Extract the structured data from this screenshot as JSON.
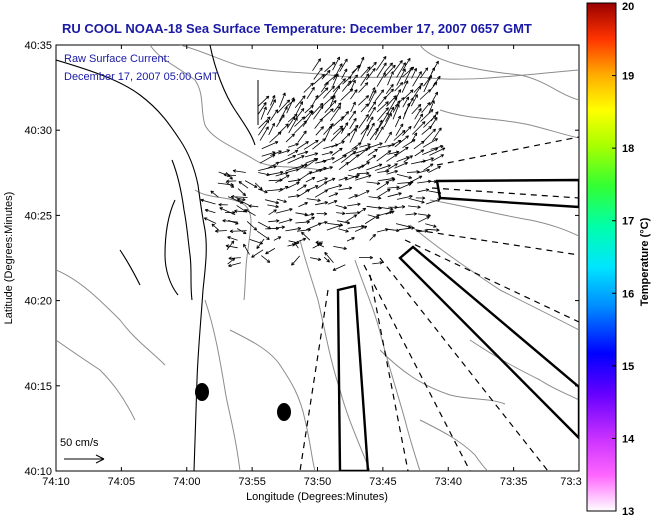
{
  "chart_data": {
    "type": "map",
    "title": "RU COOL  NOAA-18  Sea Surface Temperature:  December 17, 2007 0657 GMT",
    "annotation_line1": "Raw Surface Current:",
    "annotation_line2": "December 17, 2007 05:00 GMT",
    "xlabel": "Longitude (Degrees:Minutes)",
    "ylabel": "Latitude (Degrees:Minutes)",
    "x_ticks": [
      "74:10",
      "74:05",
      "74:00",
      "73:55",
      "73:50",
      "73:45",
      "73:40",
      "73:35",
      "73:3"
    ],
    "y_ticks": [
      "40:10",
      "40:15",
      "40:20",
      "40:25",
      "40:30",
      "40:35"
    ],
    "scale_label": "50 cm/s",
    "colorbar": {
      "label": "Temperature (°C)",
      "ticks": [
        "13",
        "14",
        "15",
        "16",
        "17",
        "18",
        "19",
        "20"
      ],
      "min": 13,
      "max": 20
    },
    "colors": {
      "title": "#1a1aa6",
      "annotation": "#1a1aa6",
      "land": "#ffffff",
      "contour": "#8c8c8c",
      "arrows": "#000000"
    }
  }
}
